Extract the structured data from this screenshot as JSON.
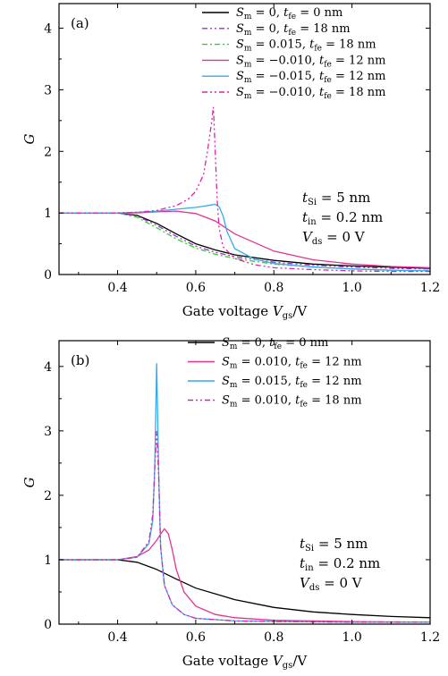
{
  "chart_data": [
    {
      "panel": "(a)",
      "type": "line",
      "xlabel": "Gate voltage V_gs/V",
      "ylabel": "G",
      "xlim": [
        0.25,
        1.2
      ],
      "ylim": [
        0,
        4.4
      ],
      "xticks": [
        "0.4",
        "0.6",
        "0.8",
        "1.0",
        "1.2"
      ],
      "yticks": [
        "0",
        "1",
        "2",
        "3",
        "4"
      ],
      "xlabel_main": "Gate voltage ",
      "xlabel_var": "V",
      "xlabel_sub": "gs",
      "xlabel_unit": "/V",
      "legend_position": "top-right",
      "annotations": [
        {
          "var": "t",
          "sub": "Si",
          "rest": " = 5 nm"
        },
        {
          "var": "t",
          "sub": "in",
          "rest": " = 0.2 nm"
        },
        {
          "var": "V",
          "sub": "ds",
          "rest": " = 0 V"
        }
      ],
      "series": [
        {
          "name": "S_m = 0, t_fe = 0 nm",
          "legend": {
            "a": "= 0, ",
            "b": "= 0 nm"
          },
          "color": "#000000",
          "dash": "",
          "x": [
            0.25,
            0.4,
            0.45,
            0.5,
            0.55,
            0.6,
            0.65,
            0.7,
            0.8,
            0.9,
            1.0,
            1.1,
            1.2
          ],
          "y": [
            1.0,
            1.0,
            0.96,
            0.83,
            0.66,
            0.5,
            0.4,
            0.32,
            0.23,
            0.17,
            0.14,
            0.12,
            0.1
          ]
        },
        {
          "name": "S_m = 0, t_fe = 18 nm",
          "legend": {
            "a": "= 0, ",
            "b": "= 18 nm"
          },
          "color": "#9933cc",
          "dash": "6 3 2 3 2 3",
          "x": [
            0.25,
            0.4,
            0.45,
            0.5,
            0.55,
            0.6,
            0.65,
            0.7,
            0.8,
            0.9,
            1.0,
            1.1,
            1.2
          ],
          "y": [
            1.0,
            1.0,
            0.95,
            0.8,
            0.62,
            0.46,
            0.36,
            0.29,
            0.2,
            0.15,
            0.12,
            0.1,
            0.09
          ]
        },
        {
          "name": "S_m = 0.015, t_fe = 18 nm",
          "legend": {
            "a": "= 0.015, ",
            "b": "= 18 nm"
          },
          "color": "#33cc33",
          "dash": "6 3 2 3",
          "x": [
            0.25,
            0.4,
            0.45,
            0.5,
            0.55,
            0.6,
            0.65,
            0.7,
            0.8,
            0.9,
            1.0,
            1.1,
            1.2
          ],
          "y": [
            1.0,
            1.0,
            0.93,
            0.76,
            0.58,
            0.43,
            0.33,
            0.26,
            0.17,
            0.12,
            0.09,
            0.07,
            0.06
          ]
        },
        {
          "name": "S_m = -0.010, t_fe = 12 nm",
          "legend": {
            "a": "= −0.010, ",
            "b": "= 12 nm"
          },
          "color": "#e6338c",
          "dash": "",
          "x": [
            0.25,
            0.4,
            0.45,
            0.5,
            0.55,
            0.6,
            0.65,
            0.7,
            0.8,
            0.9,
            1.0,
            1.1,
            1.2
          ],
          "y": [
            1.0,
            1.0,
            1.0,
            1.02,
            1.03,
            0.99,
            0.87,
            0.66,
            0.38,
            0.24,
            0.17,
            0.13,
            0.11
          ]
        },
        {
          "name": "S_m = -0.015, t_fe = 12 nm",
          "legend": {
            "a": "= −0.015, ",
            "b": "= 12 nm"
          },
          "color": "#33aaee",
          "dash": "",
          "x": [
            0.25,
            0.4,
            0.45,
            0.5,
            0.55,
            0.6,
            0.62,
            0.64,
            0.65,
            0.66,
            0.67,
            0.68,
            0.7,
            0.75,
            0.8,
            0.9,
            1.0,
            1.1,
            1.2
          ],
          "y": [
            1.0,
            1.0,
            1.01,
            1.03,
            1.06,
            1.09,
            1.11,
            1.13,
            1.14,
            1.1,
            0.95,
            0.7,
            0.42,
            0.25,
            0.18,
            0.12,
            0.09,
            0.07,
            0.06
          ]
        },
        {
          "name": "S_m = -0.010, t_fe = 18 nm",
          "legend": {
            "a": "= −0.010, ",
            "b": "= 18 nm"
          },
          "color": "#dd22aa",
          "dash": "6 3 2 3 2 3",
          "x": [
            0.25,
            0.4,
            0.45,
            0.5,
            0.55,
            0.58,
            0.6,
            0.62,
            0.63,
            0.64,
            0.645,
            0.65,
            0.655,
            0.66,
            0.67,
            0.7,
            0.75,
            0.8,
            0.9,
            1.0,
            1.1,
            1.2
          ],
          "y": [
            1.0,
            1.0,
            1.01,
            1.04,
            1.12,
            1.22,
            1.35,
            1.62,
            2.0,
            2.45,
            2.72,
            2.0,
            1.2,
            0.75,
            0.45,
            0.26,
            0.16,
            0.11,
            0.08,
            0.06,
            0.05,
            0.05
          ]
        }
      ]
    },
    {
      "panel": "(b)",
      "type": "line",
      "xlabel": "Gate voltage V_gs/V",
      "ylabel": "G",
      "xlim": [
        0.25,
        1.2
      ],
      "ylim": [
        0,
        4.4
      ],
      "xticks": [
        "0.4",
        "0.6",
        "0.8",
        "1.0",
        "1.2"
      ],
      "yticks": [
        "0",
        "1",
        "2",
        "3",
        "4"
      ],
      "xlabel_main": "Gate voltage ",
      "xlabel_var": "V",
      "xlabel_sub": "gs",
      "xlabel_unit": "/V",
      "legend_position": "top-right",
      "annotations": [
        {
          "var": "t",
          "sub": "Si",
          "rest": " = 5 nm"
        },
        {
          "var": "t",
          "sub": "in",
          "rest": " = 0.2 nm"
        },
        {
          "var": "V",
          "sub": "ds",
          "rest": " = 0 V"
        }
      ],
      "series": [
        {
          "name": "S_m = 0, t_fe = 0 nm",
          "legend": {
            "a": "= 0, ",
            "b": "= 0 nm"
          },
          "color": "#000000",
          "dash": "",
          "x": [
            0.25,
            0.4,
            0.45,
            0.5,
            0.55,
            0.6,
            0.7,
            0.8,
            0.9,
            1.0,
            1.1,
            1.2
          ],
          "y": [
            1.0,
            1.0,
            0.96,
            0.85,
            0.7,
            0.56,
            0.38,
            0.26,
            0.19,
            0.15,
            0.12,
            0.1
          ]
        },
        {
          "name": "S_m = 0.010, t_fe = 12 nm",
          "legend": {
            "a": "= 0.010, ",
            "b": "= 12 nm"
          },
          "color": "#e6338c",
          "dash": "",
          "x": [
            0.25,
            0.4,
            0.45,
            0.48,
            0.5,
            0.51,
            0.52,
            0.53,
            0.54,
            0.55,
            0.57,
            0.6,
            0.65,
            0.7,
            0.8,
            0.9,
            1.0,
            1.2
          ],
          "y": [
            1.0,
            1.0,
            1.05,
            1.15,
            1.3,
            1.4,
            1.48,
            1.4,
            1.15,
            0.85,
            0.5,
            0.28,
            0.15,
            0.1,
            0.06,
            0.05,
            0.04,
            0.03
          ]
        },
        {
          "name": "S_m = 0.015, t_fe = 12 nm",
          "legend": {
            "a": "= 0.015, ",
            "b": "= 12 nm"
          },
          "color": "#33aaee",
          "dash": "",
          "x": [
            0.25,
            0.4,
            0.45,
            0.48,
            0.49,
            0.495,
            0.5,
            0.505,
            0.51,
            0.52,
            0.54,
            0.57,
            0.6,
            0.7,
            0.8,
            1.0,
            1.2
          ],
          "y": [
            1.0,
            1.0,
            1.04,
            1.25,
            1.6,
            2.4,
            4.05,
            2.4,
            1.2,
            0.6,
            0.3,
            0.15,
            0.09,
            0.05,
            0.04,
            0.03,
            0.03
          ]
        },
        {
          "name": "S_m = 0.010, t_fe = 18 nm",
          "legend": {
            "a": "= 0.010, ",
            "b": "= 18 nm"
          },
          "color": "#dd22aa",
          "dash": "6 3 2 3 2 3",
          "x": [
            0.25,
            0.4,
            0.45,
            0.48,
            0.49,
            0.495,
            0.5,
            0.505,
            0.51,
            0.52,
            0.54,
            0.57,
            0.6,
            0.7,
            0.8,
            1.0,
            1.2
          ],
          "y": [
            1.0,
            1.0,
            1.04,
            1.28,
            1.7,
            2.4,
            3.0,
            2.3,
            1.2,
            0.6,
            0.3,
            0.15,
            0.09,
            0.05,
            0.04,
            0.03,
            0.03
          ]
        }
      ]
    }
  ]
}
